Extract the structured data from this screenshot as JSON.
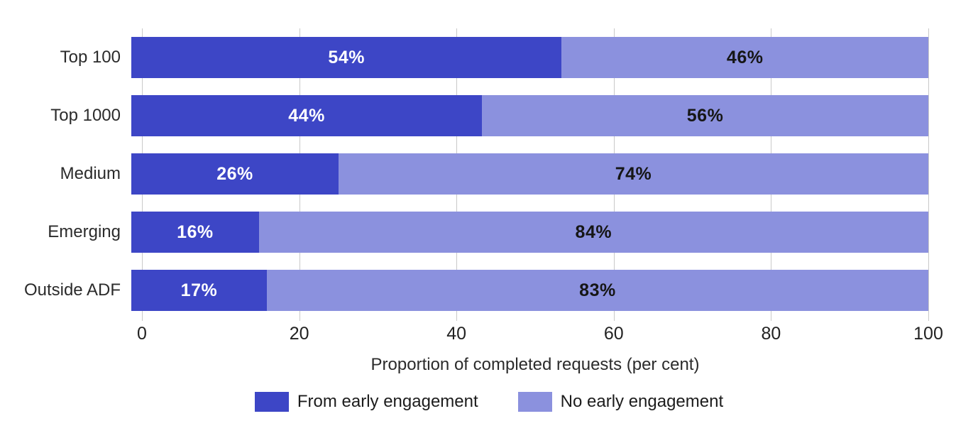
{
  "chart_data": {
    "type": "bar",
    "orientation": "horizontal",
    "stacked": true,
    "categories": [
      "Top 100",
      "Top 1000",
      "Medium",
      "Emerging",
      "Outside ADF"
    ],
    "series": [
      {
        "name": "From early engagement",
        "color": "#3d46c6",
        "values": [
          54,
          44,
          26,
          16,
          17
        ]
      },
      {
        "name": "No early engagement",
        "color": "#8b91de",
        "values": [
          46,
          56,
          74,
          84,
          83
        ]
      }
    ],
    "value_label_suffix": "%",
    "title": "",
    "xlabel": "Proportion of completed requests (per cent)",
    "ylabel": "",
    "xlim": [
      0,
      100
    ],
    "xticks": [
      0,
      20,
      40,
      60,
      80,
      100
    ],
    "grid": true,
    "gridline_color": "#c9c9c9",
    "legend_position": "bottom"
  }
}
